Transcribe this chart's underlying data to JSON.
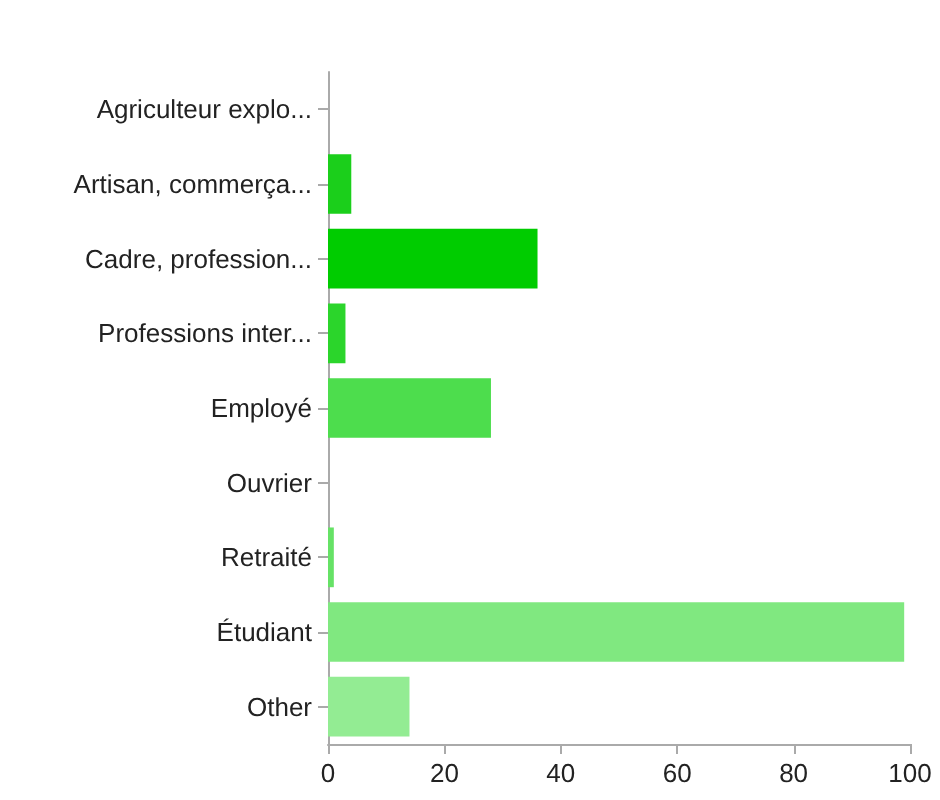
{
  "chart_data": {
    "type": "bar",
    "orientation": "horizontal",
    "categories": [
      "Agriculteur explo...",
      "Artisan, commerça...",
      "Cadre, profession...",
      "Professions inter...",
      "Employé",
      "Ouvrier",
      "Retraité",
      "Étudiant",
      "Other"
    ],
    "values": [
      0,
      4,
      36,
      3,
      28,
      0,
      1,
      99,
      14
    ],
    "colors": [
      "#00b800",
      "#1bcf1b",
      "#00cc00",
      "#2bd52b",
      "#4ddd4d",
      "#5ee05e",
      "#66e266",
      "#80e880",
      "#93ec93"
    ],
    "xlim": [
      0,
      100
    ],
    "xticks": [
      0,
      20,
      40,
      60,
      80,
      100
    ],
    "grid": false
  }
}
